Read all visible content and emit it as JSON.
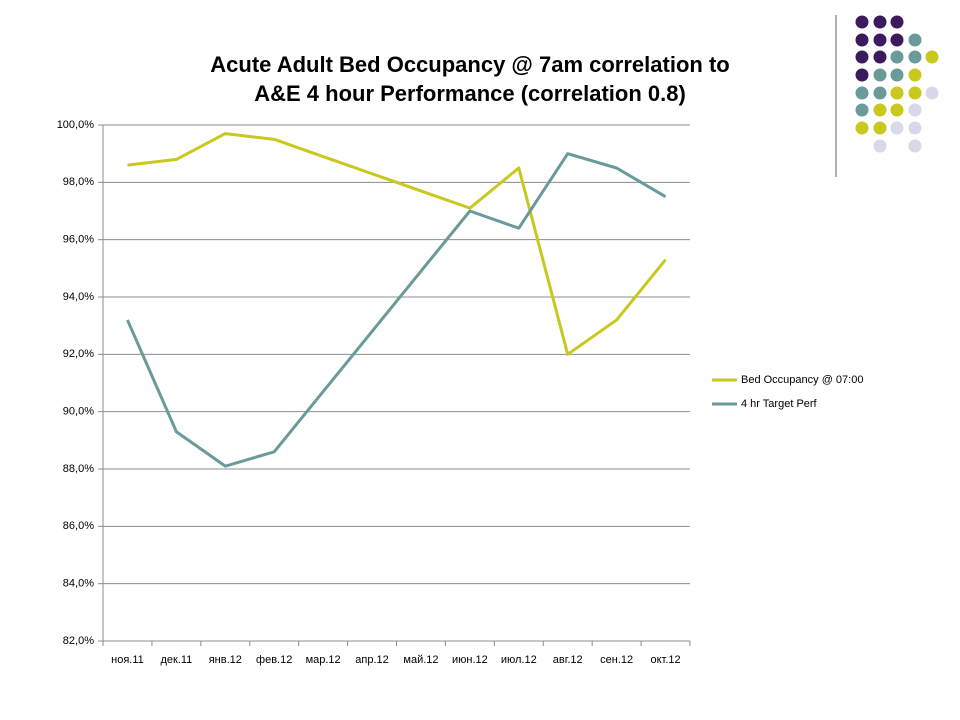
{
  "chart_data": {
    "type": "line",
    "title": [
      "Acute Adult Bed Occupancy @ 7am correlation to",
      "A&E 4 hour Performance (correlation 0.8)"
    ],
    "categories": [
      "ноя.11",
      "дек.11",
      "янв.12",
      "фев.12",
      "мар.12",
      "апр.12",
      "май.12",
      "июн.12",
      "июл.12",
      "авг.12",
      "сен.12",
      "окт.12"
    ],
    "series": [
      {
        "name": "Bed Occupancy @ 07:00",
        "color": "#c8c81e",
        "values": [
          98.6,
          98.8,
          99.7,
          99.5,
          98.9,
          98.3,
          97.7,
          97.1,
          98.5,
          92.0,
          93.2,
          95.3
        ]
      },
      {
        "name": "4 hr Target Perf",
        "color": "#6a9a9a",
        "values": [
          93.2,
          89.3,
          88.1,
          88.6,
          90.7,
          92.8,
          94.9,
          97.0,
          96.4,
          99.0,
          98.5,
          97.5
        ]
      }
    ],
    "ylim": [
      82,
      100
    ],
    "yticks": [
      {
        "value": 82,
        "label": "82,0%"
      },
      {
        "value": 84,
        "label": "84,0%"
      },
      {
        "value": 86,
        "label": "86,0%"
      },
      {
        "value": 88,
        "label": "88,0%"
      },
      {
        "value": 90,
        "label": "90,0%"
      },
      {
        "value": 92,
        "label": "92,0%"
      },
      {
        "value": 94,
        "label": "94,0%"
      },
      {
        "value": 96,
        "label": "96,0%"
      },
      {
        "value": 98,
        "label": "98,0%"
      },
      {
        "value": 100,
        "label": "100,0%"
      }
    ],
    "grid": true,
    "legend": "right"
  }
}
